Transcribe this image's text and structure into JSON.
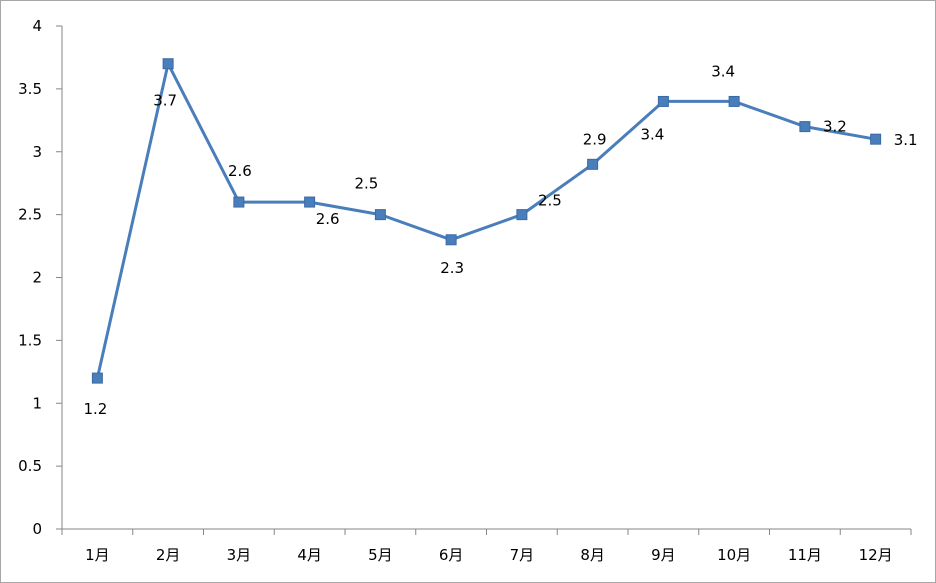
{
  "chart_data": {
    "type": "line",
    "categories": [
      "1月",
      "2月",
      "3月",
      "4月",
      "5月",
      "6月",
      "7月",
      "8月",
      "9月",
      "10月",
      "11月",
      "12月"
    ],
    "series": [
      {
        "values": [
          1.2,
          3.7,
          2.6,
          2.6,
          2.5,
          2.3,
          2.5,
          2.9,
          3.4,
          3.4,
          3.2,
          3.1
        ],
        "color": "#4a7ebb",
        "marker": "square"
      }
    ],
    "data_labels": [
      "1.2",
      "3.7",
      "2.6",
      "2.6",
      "2.5",
      "2.3",
      "2.5",
      "2.9",
      "3.4",
      "3.4",
      "3.2",
      "3.1"
    ],
    "ylim": [
      0,
      4
    ],
    "yticks": [
      0,
      0.5,
      1,
      1.5,
      2,
      2.5,
      3,
      3.5,
      4
    ],
    "ytick_labels": [
      "0",
      "0.5",
      "1",
      "1.5",
      "2",
      "2.5",
      "3",
      "3.5",
      "4"
    ],
    "grid": false,
    "legend": "none",
    "axis_color": "#868686"
  }
}
